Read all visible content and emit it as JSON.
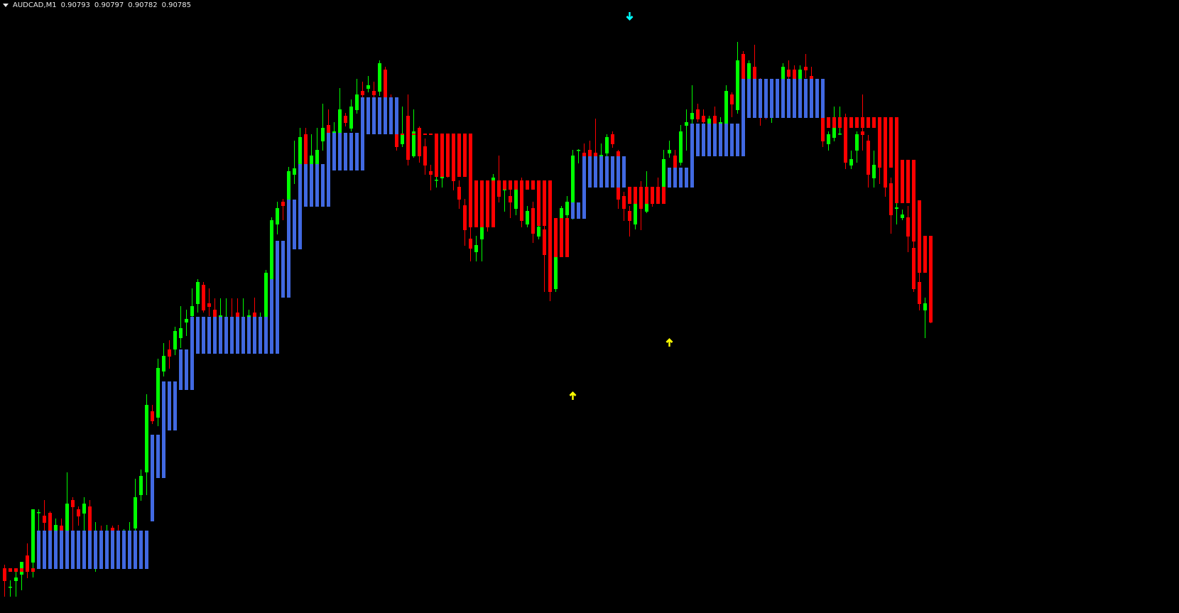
{
  "header": {
    "symbol": "AUDCAD,M1",
    "open": "0.90793",
    "high": "0.90797",
    "low": "0.90782",
    "close": "0.90785"
  },
  "colors": {
    "background": "#000000",
    "bull_candle": "#00ff00",
    "bear_candle": "#ff0000",
    "box_up": "#4169e1",
    "box_down": "#ff0000",
    "sell_arrow": "#00ffff",
    "buy_arrow": "#ffff00"
  },
  "chart_data": {
    "type": "candlestick",
    "symbol": "AUDCAD",
    "timeframe": "M1",
    "ylim": [
      0.90374,
      0.91237
    ],
    "grid": false,
    "candles_ohlc_points": "price x 100000",
    "candles": [
      [
        90437,
        90442,
        90397,
        90419
      ],
      [
        90410,
        90420,
        90397,
        90411
      ],
      [
        90419,
        90432,
        90397,
        90424
      ],
      [
        90428,
        90446,
        90406,
        90446
      ],
      [
        90455,
        90472,
        90423,
        90432
      ],
      [
        90445,
        90520,
        90424,
        90520
      ],
      [
        90515,
        90520,
        90490,
        90516
      ],
      [
        90511,
        90533,
        90490,
        90501
      ],
      [
        90515,
        90517,
        90487,
        90490
      ],
      [
        90490,
        90507,
        90487,
        90498
      ],
      [
        90497,
        90507,
        90485,
        90489
      ],
      [
        90490,
        90572,
        90487,
        90528
      ],
      [
        90533,
        90537,
        90490,
        90523
      ],
      [
        90520,
        90524,
        90497,
        90510
      ],
      [
        90514,
        90537,
        90490,
        90528
      ],
      [
        90524,
        90533,
        90487,
        90490
      ],
      [
        90477,
        90502,
        90432,
        90487
      ],
      [
        90485,
        90497,
        90467,
        90477
      ],
      [
        90477,
        90498,
        90472,
        90485
      ],
      [
        90494,
        90497,
        90477,
        90490
      ],
      [
        90487,
        90498,
        90472,
        90480
      ],
      [
        90477,
        90492,
        90469,
        90485
      ],
      [
        90482,
        90502,
        90477,
        90489
      ],
      [
        90493,
        90563,
        90487,
        90537
      ],
      [
        90540,
        90576,
        90532,
        90567
      ],
      [
        90572,
        90682,
        90540,
        90667
      ],
      [
        90658,
        90667,
        90640,
        90644
      ],
      [
        90649,
        90732,
        90637,
        90719
      ],
      [
        90714,
        90754,
        90707,
        90736
      ],
      [
        90745,
        90758,
        90718,
        90735
      ],
      [
        90745,
        90777,
        90737,
        90771
      ],
      [
        90761,
        90806,
        90747,
        90775
      ],
      [
        90783,
        90801,
        90764,
        90788
      ],
      [
        90792,
        90831,
        90787,
        90806
      ],
      [
        90809,
        90844,
        90797,
        90840
      ],
      [
        90836,
        90840,
        90797,
        90800
      ],
      [
        90810,
        90831,
        90792,
        90805
      ],
      [
        90801,
        90817,
        90787,
        90791
      ],
      [
        90791,
        90817,
        90787,
        90793
      ],
      [
        90782,
        90817,
        90777,
        90789
      ],
      [
        90789,
        90817,
        90775,
        90782
      ],
      [
        90797,
        90817,
        90782,
        90791
      ],
      [
        90782,
        90817,
        90777,
        90789
      ],
      [
        90791,
        90801,
        90785,
        90793
      ],
      [
        90797,
        90818,
        90785,
        90791
      ],
      [
        90787,
        90797,
        90782,
        90791
      ],
      [
        90791,
        90857,
        90787,
        90853
      ],
      [
        90844,
        90931,
        90837,
        90927
      ],
      [
        90921,
        90953,
        90907,
        90944
      ],
      [
        90953,
        90957,
        90927,
        90947
      ],
      [
        90956,
        91002,
        90947,
        90996
      ],
      [
        90991,
        91039,
        90978,
        91000
      ],
      [
        91006,
        91057,
        90997,
        91044
      ],
      [
        91048,
        91057,
        91002,
        91006
      ],
      [
        91006,
        91048,
        91002,
        91018
      ],
      [
        91006,
        91057,
        91002,
        91026
      ],
      [
        91038,
        91091,
        91025,
        91057
      ],
      [
        91061,
        91083,
        91047,
        91050
      ],
      [
        91050,
        91065,
        91045,
        91052
      ],
      [
        91050,
        91113,
        91047,
        91083
      ],
      [
        91074,
        91078,
        91059,
        91064
      ],
      [
        91056,
        91097,
        91052,
        91087
      ],
      [
        91082,
        91126,
        91077,
        91104
      ],
      [
        91109,
        91122,
        91100,
        91103
      ],
      [
        91112,
        91130,
        91107,
        91117
      ],
      [
        91109,
        91122,
        91100,
        91103
      ],
      [
        91108,
        91152,
        91102,
        91148
      ],
      [
        91139,
        91143,
        91097,
        91100
      ],
      [
        91097,
        91104,
        91077,
        91087
      ],
      [
        91048,
        91052,
        91025,
        91030
      ],
      [
        91034,
        91087,
        91030,
        91048
      ],
      [
        91074,
        91104,
        91004,
        91012
      ],
      [
        91017,
        91083,
        91015,
        91052
      ],
      [
        91057,
        91059,
        91008,
        91017
      ],
      [
        91031,
        91042,
        90991,
        91004
      ],
      [
        90996,
        91005,
        90969,
        90991
      ],
      [
        90983,
        90988,
        90973,
        90984
      ],
      [
        90986,
        90992,
        90973,
        90988
      ],
      [
        91007,
        91037,
        90987,
        90992
      ],
      [
        91002,
        91017,
        90969,
        90982
      ],
      [
        90974,
        90983,
        90943,
        90956
      ],
      [
        90948,
        90957,
        90891,
        90913
      ],
      [
        90901,
        90917,
        90869,
        90887
      ],
      [
        90882,
        90905,
        90869,
        90892
      ],
      [
        90900,
        90927,
        90869,
        90917
      ],
      [
        90937,
        90947,
        90911,
        90922
      ],
      [
        90983,
        90992,
        90937,
        90987
      ],
      [
        90983,
        91018,
        90952,
        90960
      ],
      [
        90969,
        90977,
        90939,
        90971
      ],
      [
        90961,
        90972,
        90930,
        90952
      ],
      [
        90943,
        90975,
        90934,
        90970
      ],
      [
        90983,
        90987,
        90917,
        90926
      ],
      [
        90921,
        90947,
        90917,
        90940
      ],
      [
        90944,
        90953,
        90895,
        90908
      ],
      [
        90904,
        90937,
        90900,
        90918
      ],
      [
        90914,
        90927,
        90826,
        90878
      ],
      [
        90983,
        90983,
        90813,
        90826
      ],
      [
        90830,
        90897,
        90826,
        90875
      ],
      [
        90930,
        90947,
        90922,
        90944
      ],
      [
        90934,
        90961,
        90927,
        90953
      ],
      [
        90952,
        91026,
        90928,
        91018
      ],
      [
        91025,
        91027,
        91007,
        91026
      ],
      [
        91022,
        91035,
        91012,
        91017
      ],
      [
        91026,
        91039,
        91013,
        91017
      ],
      [
        91022,
        91070,
        91013,
        91017
      ],
      [
        91012,
        91035,
        91007,
        91019
      ],
      [
        91021,
        91048,
        91017,
        91044
      ],
      [
        91048,
        91052,
        91029,
        91034
      ],
      [
        91024,
        91026,
        90943,
        90956
      ],
      [
        90961,
        90967,
        90926,
        90943
      ],
      [
        90940,
        90947,
        90904,
        90926
      ],
      [
        90921,
        90957,
        90914,
        90950
      ],
      [
        90974,
        90982,
        90913,
        90943
      ],
      [
        90939,
        90996,
        90937,
        90950
      ],
      [
        90962,
        90964,
        90946,
        90952
      ],
      [
        90967,
        90987,
        90952,
        90957
      ],
      [
        90974,
        91026,
        90969,
        91013
      ],
      [
        91021,
        91039,
        91015,
        91026
      ],
      [
        91018,
        91026,
        90997,
        91001
      ],
      [
        91008,
        91061,
        91004,
        91052
      ],
      [
        91060,
        91083,
        91025,
        91065
      ],
      [
        91069,
        91117,
        91062,
        91078
      ],
      [
        91083,
        91091,
        91065,
        91069
      ],
      [
        91074,
        91083,
        91059,
        91065
      ],
      [
        91063,
        91074,
        91057,
        91070
      ],
      [
        91074,
        91087,
        91059,
        91063
      ],
      [
        91057,
        91072,
        91047,
        91065
      ],
      [
        91063,
        91117,
        91059,
        91109
      ],
      [
        91104,
        91107,
        91072,
        91090
      ],
      [
        91082,
        91178,
        91077,
        91152
      ],
      [
        91161,
        91165,
        91122,
        91126
      ],
      [
        91126,
        91152,
        91117,
        91148
      ],
      [
        91143,
        91174,
        91122,
        91126
      ],
      [
        91122,
        91127,
        91060,
        91107
      ],
      [
        91117,
        91125,
        91069,
        91102
      ],
      [
        91097,
        91119,
        91064,
        91112
      ],
      [
        91117,
        91125,
        91097,
        91107
      ],
      [
        91126,
        91148,
        91119,
        91143
      ],
      [
        91139,
        91152,
        91122,
        91129
      ],
      [
        91139,
        91145,
        91119,
        91126
      ],
      [
        91126,
        91145,
        91121,
        91139
      ],
      [
        91143,
        91161,
        91127,
        91138
      ],
      [
        91130,
        91143,
        91122,
        91126
      ],
      [
        91107,
        91126,
        91097,
        91117
      ],
      [
        91071,
        91077,
        91030,
        91038
      ],
      [
        91034,
        91052,
        91025,
        91048
      ],
      [
        91043,
        91087,
        91038,
        91057
      ],
      [
        91048,
        91087,
        91047,
        91049
      ],
      [
        91072,
        91077,
        90999,
        91008
      ],
      [
        91004,
        91025,
        90999,
        91013
      ],
      [
        91025,
        91052,
        91008,
        91048
      ],
      [
        91052,
        91104,
        91025,
        91047
      ],
      [
        91039,
        91047,
        90973,
        90991
      ],
      [
        90986,
        91025,
        90973,
        91005
      ],
      [
        91067,
        91072,
        90978,
        91001
      ],
      [
        91072,
        91072,
        90960,
        90973
      ],
      [
        90979,
        90987,
        90908,
        90934
      ],
      [
        90943,
        90952,
        90921,
        90945
      ],
      [
        90930,
        90942,
        90927,
        90935
      ],
      [
        90931,
        90947,
        90882,
        90904
      ],
      [
        90888,
        90897,
        90826,
        90830
      ],
      [
        90840,
        90853,
        90800,
        90809
      ],
      [
        90800,
        90818,
        90761,
        90810
      ],
      [
        90793,
        90797,
        90782,
        90785
      ]
    ],
    "boxes": [
      {
        "from": 0,
        "to": 5,
        "hi": 90437,
        "lo": 90432,
        "dir": "down"
      },
      {
        "from": 6,
        "to": 25,
        "hi": 90490,
        "lo": 90436,
        "dir": "up"
      },
      {
        "from": 26,
        "to": 26,
        "hi": 90625,
        "lo": 90503,
        "dir": "up"
      },
      {
        "from": 27,
        "to": 27,
        "hi": 90625,
        "lo": 90564,
        "dir": "up"
      },
      {
        "from": 28,
        "to": 28,
        "hi": 90700,
        "lo": 90564,
        "dir": "up"
      },
      {
        "from": 29,
        "to": 30,
        "hi": 90700,
        "lo": 90631,
        "dir": "up"
      },
      {
        "from": 31,
        "to": 32,
        "hi": 90745,
        "lo": 90688,
        "dir": "up"
      },
      {
        "from": 33,
        "to": 33,
        "hi": 90791,
        "lo": 90688,
        "dir": "up"
      },
      {
        "from": 34,
        "to": 46,
        "hi": 90791,
        "lo": 90739,
        "dir": "up"
      },
      {
        "from": 47,
        "to": 47,
        "hi": 90844,
        "lo": 90739,
        "dir": "up"
      },
      {
        "from": 48,
        "to": 48,
        "hi": 90898,
        "lo": 90739,
        "dir": "up"
      },
      {
        "from": 49,
        "to": 49,
        "hi": 90898,
        "lo": 90818,
        "dir": "up"
      },
      {
        "from": 50,
        "to": 50,
        "hi": 90956,
        "lo": 90818,
        "dir": "up"
      },
      {
        "from": 51,
        "to": 51,
        "hi": 90956,
        "lo": 90886,
        "dir": "up"
      },
      {
        "from": 52,
        "to": 52,
        "hi": 91006,
        "lo": 90886,
        "dir": "up"
      },
      {
        "from": 53,
        "to": 56,
        "hi": 91006,
        "lo": 90946,
        "dir": "up"
      },
      {
        "from": 57,
        "to": 57,
        "hi": 91050,
        "lo": 90946,
        "dir": "up"
      },
      {
        "from": 58,
        "to": 62,
        "hi": 91050,
        "lo": 90997,
        "dir": "up"
      },
      {
        "from": 63,
        "to": 63,
        "hi": 91100,
        "lo": 90997,
        "dir": "up"
      },
      {
        "from": 64,
        "to": 69,
        "hi": 91100,
        "lo": 91048,
        "dir": "up"
      },
      {
        "from": 70,
        "to": 75,
        "hi": 91049,
        "lo": 91047,
        "dir": "down"
      },
      {
        "from": 76,
        "to": 81,
        "hi": 91049,
        "lo": 90988,
        "dir": "down"
      },
      {
        "from": 82,
        "to": 82,
        "hi": 91049,
        "lo": 90917,
        "dir": "down"
      },
      {
        "from": 83,
        "to": 86,
        "hi": 90983,
        "lo": 90917,
        "dir": "down"
      },
      {
        "from": 87,
        "to": 93,
        "hi": 90983,
        "lo": 90970,
        "dir": "down"
      },
      {
        "from": 94,
        "to": 96,
        "hi": 90983,
        "lo": 90919,
        "dir": "down"
      },
      {
        "from": 97,
        "to": 99,
        "hi": 90930,
        "lo": 90875,
        "dir": "down"
      },
      {
        "from": 100,
        "to": 101,
        "hi": 90952,
        "lo": 90929,
        "dir": "up"
      },
      {
        "from": 102,
        "to": 102,
        "hi": 91017,
        "lo": 90929,
        "dir": "up"
      },
      {
        "from": 103,
        "to": 109,
        "hi": 91017,
        "lo": 90973,
        "dir": "up"
      },
      {
        "from": 110,
        "to": 116,
        "hi": 90974,
        "lo": 90950,
        "dir": "down"
      },
      {
        "from": 117,
        "to": 120,
        "hi": 91001,
        "lo": 90973,
        "dir": "up"
      },
      {
        "from": 121,
        "to": 121,
        "hi": 91063,
        "lo": 90973,
        "dir": "up"
      },
      {
        "from": 122,
        "to": 129,
        "hi": 91063,
        "lo": 91017,
        "dir": "up"
      },
      {
        "from": 130,
        "to": 130,
        "hi": 91126,
        "lo": 91017,
        "dir": "up"
      },
      {
        "from": 131,
        "to": 144,
        "hi": 91126,
        "lo": 91071,
        "dir": "up"
      },
      {
        "from": 145,
        "to": 153,
        "hi": 91072,
        "lo": 91057,
        "dir": "down"
      },
      {
        "from": 154,
        "to": 154,
        "hi": 91072,
        "lo": 91001,
        "dir": "down"
      },
      {
        "from": 155,
        "to": 155,
        "hi": 91072,
        "lo": 90973,
        "dir": "down"
      },
      {
        "from": 156,
        "to": 156,
        "hi": 91072,
        "lo": 91001,
        "dir": "down"
      },
      {
        "from": 157,
        "to": 157,
        "hi": 91072,
        "lo": 90951,
        "dir": "down"
      },
      {
        "from": 158,
        "to": 159,
        "hi": 91012,
        "lo": 90951,
        "dir": "down"
      },
      {
        "from": 160,
        "to": 160,
        "hi": 91012,
        "lo": 90897,
        "dir": "down"
      },
      {
        "from": 161,
        "to": 161,
        "hi": 90955,
        "lo": 90853,
        "dir": "down"
      },
      {
        "from": 162,
        "to": 162,
        "hi": 90905,
        "lo": 90853,
        "dir": "down"
      },
      {
        "from": 163,
        "to": 163,
        "hi": 90905,
        "lo": 90783,
        "dir": "down"
      }
    ],
    "arrows": [
      {
        "bar": 110,
        "price": 91214,
        "type": "sell"
      },
      {
        "bar": 100,
        "price": 90680,
        "type": "buy"
      },
      {
        "bar": 117,
        "price": 90755,
        "type": "buy"
      }
    ]
  }
}
